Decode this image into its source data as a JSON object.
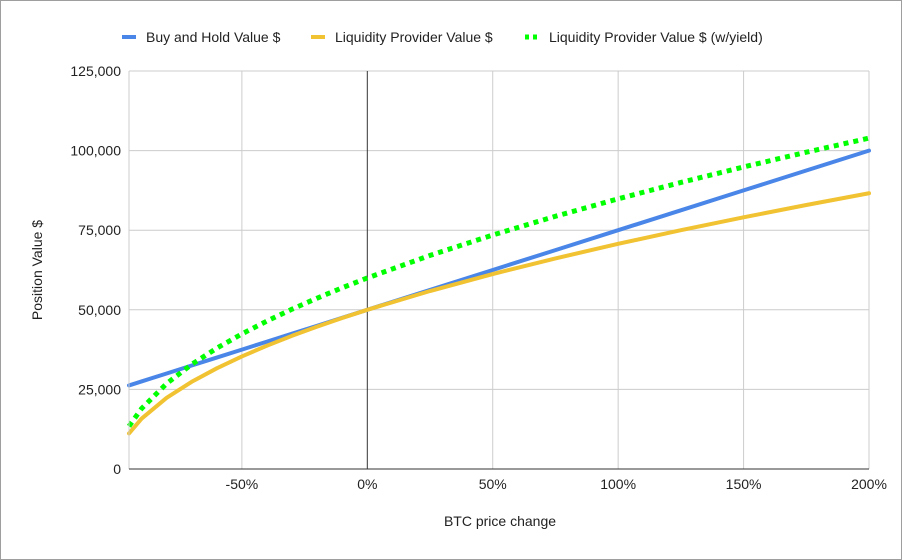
{
  "chart_data": {
    "type": "line",
    "title": "",
    "xlabel": "BTC price change",
    "ylabel": "Position Value $",
    "xlim": [
      -95,
      200
    ],
    "ylim": [
      0,
      125000
    ],
    "x_ticks": [
      {
        "value": -50,
        "label": "-50%"
      },
      {
        "value": 0,
        "label": "0%"
      },
      {
        "value": 50,
        "label": "50%"
      },
      {
        "value": 100,
        "label": "100%"
      },
      {
        "value": 150,
        "label": "150%"
      },
      {
        "value": 200,
        "label": "200%"
      }
    ],
    "y_ticks": [
      {
        "value": 0,
        "label": "0"
      },
      {
        "value": 25000,
        "label": "25,000"
      },
      {
        "value": 50000,
        "label": "50,000"
      },
      {
        "value": 75000,
        "label": "75,000"
      },
      {
        "value": 100000,
        "label": "100,000"
      },
      {
        "value": 125000,
        "label": "125,000"
      }
    ],
    "grid": true,
    "legend_position": "top",
    "x": [
      -95,
      -90,
      -80,
      -70,
      -60,
      -50,
      -40,
      -30,
      -20,
      -10,
      0,
      25,
      50,
      75,
      100,
      125,
      150,
      175,
      200
    ],
    "series": [
      {
        "name": "Buy and Hold Value $",
        "color": "#4a86e8",
        "style": "solid",
        "values": [
          26250,
          27500,
          30000,
          32500,
          35000,
          37500,
          40000,
          42500,
          45000,
          47500,
          50000,
          56250,
          62500,
          68750,
          75000,
          81250,
          87500,
          93750,
          100000
        ]
      },
      {
        "name": "Liquidity Provider Value $",
        "color": "#f1c232",
        "style": "solid",
        "values": [
          11180,
          15811,
          22361,
          27386,
          31623,
          35355,
          38730,
          41833,
          44721,
          47434,
          50000,
          55902,
          61237,
          66144,
          70711,
          75000,
          79057,
          82916,
          86603
        ]
      },
      {
        "name": "Liquidity Provider Value $ (w/yield)",
        "color": "#00ff00",
        "style": "dotted",
        "values": [
          13416,
          18974,
          26833,
          32863,
          37947,
          42426,
          46476,
          50200,
          53666,
          56921,
          60000,
          67082,
          73485,
          79373,
          84853,
          90000,
          94868,
          99499,
          103923
        ]
      }
    ]
  }
}
